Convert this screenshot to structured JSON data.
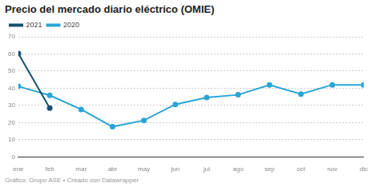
{
  "chart_data": {
    "type": "line",
    "title": "Precio del mercado diario eléctrico (OMIE)",
    "source": "Gráfico: Grupo ASE • Creado con Datawrapper",
    "categories": [
      "ene",
      "feb",
      "mar",
      "abr",
      "may",
      "jun",
      "jul",
      "ago",
      "sep",
      "oct",
      "nov",
      "dic"
    ],
    "series": [
      {
        "name": "2021",
        "color": "#15506e",
        "values": [
          60.2,
          28.5,
          null,
          null,
          null,
          null,
          null,
          null,
          null,
          null,
          null,
          null
        ]
      },
      {
        "name": "2020",
        "color": "#2aa5d6",
        "values": [
          41.1,
          35.9,
          27.7,
          17.6,
          21.3,
          30.6,
          34.6,
          36.2,
          41.9,
          36.6,
          42.0,
          42.0
        ]
      }
    ],
    "ylim": [
      0,
      70
    ],
    "yticks": [
      0,
      10,
      20,
      30,
      40,
      50,
      60,
      70
    ],
    "grid": true,
    "legend": "top-left",
    "marker": "circle",
    "line_style": "solid"
  }
}
